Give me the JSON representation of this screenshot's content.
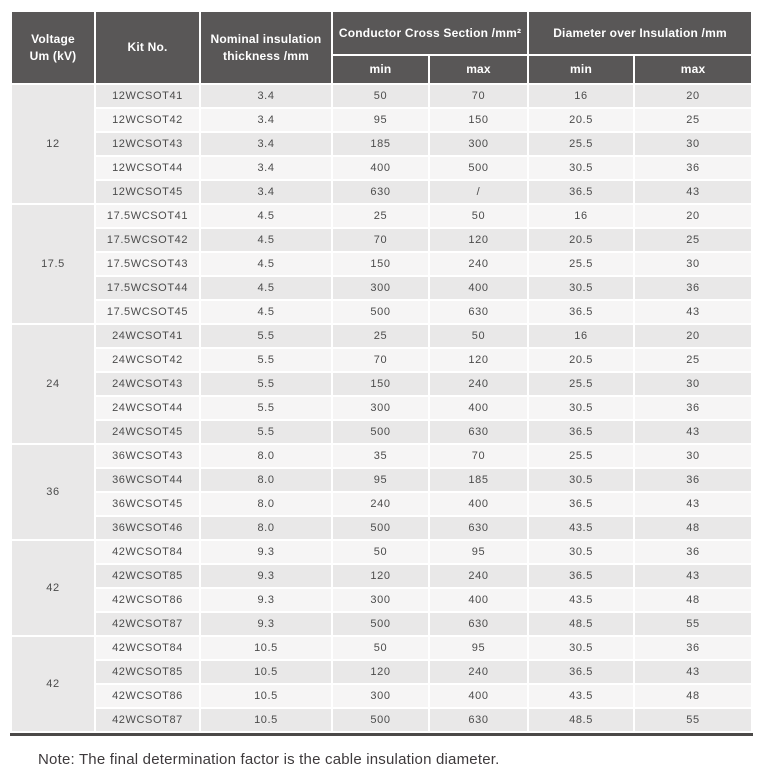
{
  "colors": {
    "header_bg": "#595757",
    "header_text": "#ffffff",
    "row_gray": "#e9e8e8",
    "row_light": "#f6f5f5",
    "gap_white": "#ffffff",
    "body_text": "#4c4c4c",
    "border_dark": "#4b4948",
    "note_text": "#3e3a3c"
  },
  "table": {
    "header": {
      "voltage_l1": "Voltage",
      "voltage_l2": "Um (kV)",
      "kit": "Kit No.",
      "thickness_l1": "Nominal insulation",
      "thickness_l2": "thickness /mm",
      "ccs": "Conductor Cross Section /mm²",
      "dia": "Diameter over Insulation /mm",
      "ccs_min": "min",
      "ccs_max": "max",
      "dia_min": "min",
      "dia_max": "max"
    },
    "groups": [
      {
        "voltage": "12",
        "rows": [
          [
            "12WCSOT41",
            "3.4",
            "50",
            "70",
            "16",
            "20"
          ],
          [
            "12WCSOT42",
            "3.4",
            "95",
            "150",
            "20.5",
            "25"
          ],
          [
            "12WCSOT43",
            "3.4",
            "185",
            "300",
            "25.5",
            "30"
          ],
          [
            "12WCSOT44",
            "3.4",
            "400",
            "500",
            "30.5",
            "36"
          ],
          [
            "12WCSOT45",
            "3.4",
            "630",
            "/",
            "36.5",
            "43"
          ]
        ]
      },
      {
        "voltage": "17.5",
        "rows": [
          [
            "17.5WCSOT41",
            "4.5",
            "25",
            "50",
            "16",
            "20"
          ],
          [
            "17.5WCSOT42",
            "4.5",
            "70",
            "120",
            "20.5",
            "25"
          ],
          [
            "17.5WCSOT43",
            "4.5",
            "150",
            "240",
            "25.5",
            "30"
          ],
          [
            "17.5WCSOT44",
            "4.5",
            "300",
            "400",
            "30.5",
            "36"
          ],
          [
            "17.5WCSOT45",
            "4.5",
            "500",
            "630",
            "36.5",
            "43"
          ]
        ]
      },
      {
        "voltage": "24",
        "rows": [
          [
            "24WCSOT41",
            "5.5",
            "25",
            "50",
            "16",
            "20"
          ],
          [
            "24WCSOT42",
            "5.5",
            "70",
            "120",
            "20.5",
            "25"
          ],
          [
            "24WCSOT43",
            "5.5",
            "150",
            "240",
            "25.5",
            "30"
          ],
          [
            "24WCSOT44",
            "5.5",
            "300",
            "400",
            "30.5",
            "36"
          ],
          [
            "24WCSOT45",
            "5.5",
            "500",
            "630",
            "36.5",
            "43"
          ]
        ]
      },
      {
        "voltage": "36",
        "rows": [
          [
            "36WCSOT43",
            "8.0",
            "35",
            "70",
            "25.5",
            "30"
          ],
          [
            "36WCSOT44",
            "8.0",
            "95",
            "185",
            "30.5",
            "36"
          ],
          [
            "36WCSOT45",
            "8.0",
            "240",
            "400",
            "36.5",
            "43"
          ],
          [
            "36WCSOT46",
            "8.0",
            "500",
            "630",
            "43.5",
            "48"
          ]
        ]
      },
      {
        "voltage": "42",
        "rows": [
          [
            "42WCSOT84",
            "9.3",
            "50",
            "95",
            "30.5",
            "36"
          ],
          [
            "42WCSOT85",
            "9.3",
            "120",
            "240",
            "36.5",
            "43"
          ],
          [
            "42WCSOT86",
            "9.3",
            "300",
            "400",
            "43.5",
            "48"
          ],
          [
            "42WCSOT87",
            "9.3",
            "500",
            "630",
            "48.5",
            "55"
          ]
        ]
      },
      {
        "voltage": "42",
        "rows": [
          [
            "42WCSOT84",
            "10.5",
            "50",
            "95",
            "30.5",
            "36"
          ],
          [
            "42WCSOT85",
            "10.5",
            "120",
            "240",
            "36.5",
            "43"
          ],
          [
            "42WCSOT86",
            "10.5",
            "300",
            "400",
            "43.5",
            "48"
          ],
          [
            "42WCSOT87",
            "10.5",
            "500",
            "630",
            "48.5",
            "55"
          ]
        ]
      }
    ]
  },
  "note": "Note: The final determination factor is the cable insulation diameter."
}
